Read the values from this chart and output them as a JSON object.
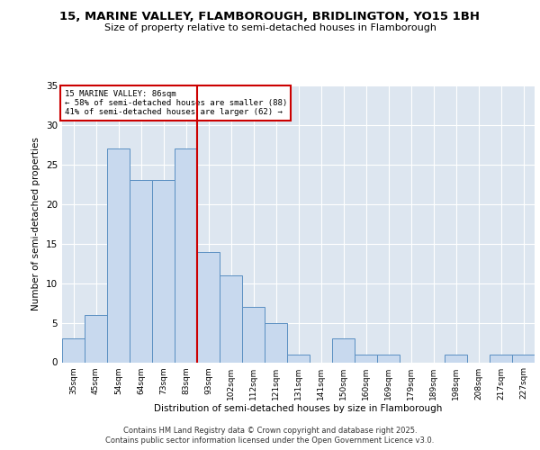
{
  "title1": "15, MARINE VALLEY, FLAMBOROUGH, BRIDLINGTON, YO15 1BH",
  "title2": "Size of property relative to semi-detached houses in Flamborough",
  "xlabel": "Distribution of semi-detached houses by size in Flamborough",
  "ylabel": "Number of semi-detached properties",
  "categories": [
    "35sqm",
    "45sqm",
    "54sqm",
    "64sqm",
    "73sqm",
    "83sqm",
    "93sqm",
    "102sqm",
    "112sqm",
    "121sqm",
    "131sqm",
    "141sqm",
    "150sqm",
    "160sqm",
    "169sqm",
    "179sqm",
    "189sqm",
    "198sqm",
    "208sqm",
    "217sqm",
    "227sqm"
  ],
  "values": [
    3,
    6,
    27,
    23,
    23,
    27,
    14,
    11,
    7,
    5,
    1,
    0,
    3,
    1,
    1,
    0,
    0,
    1,
    0,
    1,
    1
  ],
  "bar_color": "#c8d9ee",
  "bar_edge_color": "#5a8fc2",
  "vline_x": 5.5,
  "vline_color": "#cc0000",
  "annotation_title": "15 MARINE VALLEY: 86sqm",
  "annotation_line2": "← 58% of semi-detached houses are smaller (88)",
  "annotation_line3": "41% of semi-detached houses are larger (62) →",
  "annotation_box_color": "#cc0000",
  "ylim": [
    0,
    35
  ],
  "yticks": [
    0,
    5,
    10,
    15,
    20,
    25,
    30,
    35
  ],
  "footer1": "Contains HM Land Registry data © Crown copyright and database right 2025.",
  "footer2": "Contains public sector information licensed under the Open Government Licence v3.0.",
  "plot_bg_color": "#dde6f0"
}
